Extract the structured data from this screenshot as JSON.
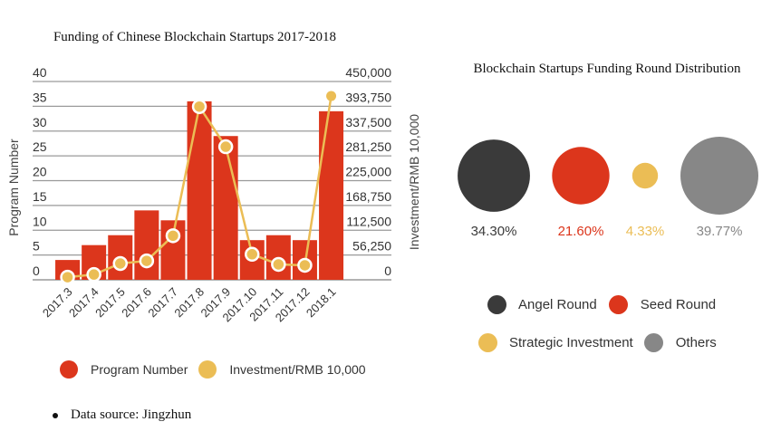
{
  "chart_data": [
    {
      "type": "bar",
      "title": "Funding of Chinese Blockchain Startups 2017-2018",
      "categories": [
        "2017.3",
        "2017.4",
        "2017.5",
        "2017.6",
        "2017.7",
        "2017.8",
        "2017.9",
        "2017.10",
        "2017.11",
        "2017.12",
        "2018.1"
      ],
      "series": [
        {
          "name": "Program Number",
          "type": "bar",
          "axis": "left",
          "color": "#dc361c",
          "values": [
            4,
            7,
            9,
            14,
            12,
            36,
            29,
            8,
            9,
            8,
            34
          ]
        },
        {
          "name": "Investment/RMB 10,000",
          "type": "line",
          "axis": "right",
          "color": "#ebbd55",
          "values": [
            6000,
            12000,
            37000,
            43000,
            100000,
            393000,
            302000,
            58000,
            35000,
            33000,
            417000
          ]
        }
      ],
      "ylabel": "Program Number",
      "y2label": "Investment/RMB 10,000",
      "ylim": [
        0,
        40
      ],
      "y2lim": [
        0,
        450000
      ],
      "yticks": [
        "0",
        "5",
        "10",
        "15",
        "20",
        "25",
        "30",
        "35",
        "40"
      ],
      "y2ticks": [
        "0",
        "56,250",
        "112,500",
        "168,750",
        "225,000",
        "281,250",
        "337,500",
        "393,750",
        "450,000"
      ],
      "grid": true,
      "legend": "bottom"
    },
    {
      "type": "bubble",
      "title": "Blockchain Startups Funding Round Distribution",
      "categories": [
        "Angel Round",
        "Seed Round",
        "Strategic Investment",
        "Others"
      ],
      "values": [
        34.3,
        21.6,
        4.33,
        39.77
      ],
      "labels": [
        "34.30%",
        "21.60%",
        "4.33%",
        "39.77%"
      ],
      "colors": [
        "#3a3a3a",
        "#dc361c",
        "#ebbd55",
        "#878787"
      ],
      "legend": "bottom"
    }
  ],
  "footnote": "Data source: Jingzhun"
}
